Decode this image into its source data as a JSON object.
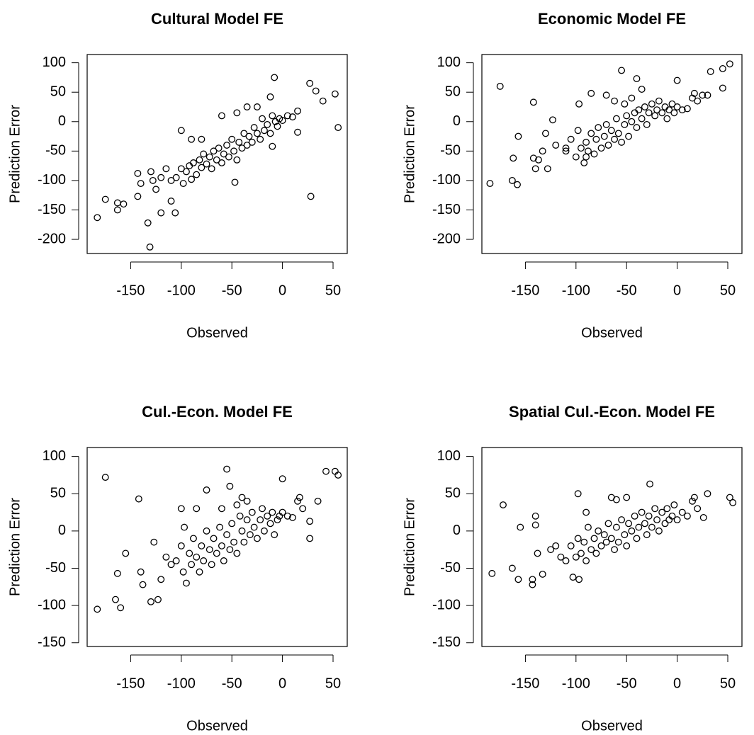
{
  "chart_data": [
    {
      "type": "scatter",
      "title": "Cultural Model FE",
      "xlabel": "Observed",
      "ylabel": "Prediction Error",
      "xlim": [
        -193,
        64
      ],
      "ylim": [
        -224,
        114
      ],
      "xticks": [
        -150,
        -100,
        -50,
        0,
        50
      ],
      "yticks": [
        -200,
        -150,
        -100,
        -50,
        0,
        50,
        100
      ],
      "color": "#000000",
      "x": [
        -183,
        -175,
        -163,
        -163,
        -157,
        -143,
        -143,
        -140,
        -133,
        -131,
        -130,
        -128,
        -125,
        -120,
        -110,
        -106,
        -100,
        -90,
        -8,
        -12,
        28,
        27,
        33,
        40,
        52,
        55,
        15,
        -10,
        -47,
        -105,
        -100,
        -98,
        -95,
        -92,
        -90,
        -88,
        -85,
        -82,
        -80,
        -78,
        -75,
        -72,
        -70,
        -68,
        -65,
        -63,
        -60,
        -58,
        -55,
        -53,
        -50,
        -48,
        -45,
        -43,
        -40,
        -38,
        -35,
        -33,
        -30,
        -28,
        -25,
        -22,
        -20,
        -18,
        -15,
        -12,
        -10,
        -7,
        -5,
        -3,
        0,
        5,
        10,
        15,
        -60,
        -45,
        -35,
        -25,
        -80,
        -115,
        -120,
        -110
      ],
      "y": [
        -163,
        -132,
        -138,
        -150,
        -140,
        -88,
        -127,
        -105,
        -172,
        -213,
        -85,
        -100,
        -115,
        -155,
        -135,
        -155,
        -15,
        -30,
        75,
        42,
        -127,
        65,
        52,
        35,
        47,
        -10,
        -18,
        -42,
        -103,
        -95,
        -80,
        -105,
        -85,
        -75,
        -98,
        -70,
        -90,
        -65,
        -78,
        -55,
        -72,
        -60,
        -80,
        -50,
        -65,
        -45,
        -70,
        -55,
        -40,
        -60,
        -30,
        -50,
        -65,
        -35,
        -45,
        -20,
        -40,
        -25,
        -35,
        -10,
        -20,
        -30,
        5,
        -15,
        -5,
        -20,
        10,
        0,
        -8,
        5,
        2,
        10,
        8,
        18,
        10,
        15,
        25,
        25,
        -30,
        -80,
        -95,
        -100
      ]
    },
    {
      "type": "scatter",
      "title": "Economic Model FE",
      "xlabel": "Observed",
      "ylabel": "Prediction Error",
      "xlim": [
        -193,
        64
      ],
      "ylim": [
        -224,
        114
      ],
      "xticks": [
        -150,
        -100,
        -50,
        0,
        50
      ],
      "yticks": [
        -200,
        -150,
        -100,
        -50,
        0,
        50,
        100
      ],
      "color": "#000000",
      "x": [
        -185,
        -175,
        -163,
        -162,
        -157,
        -158,
        -142,
        -142,
        -140,
        -137,
        -133,
        -130,
        -128,
        -123,
        -110,
        -97,
        -85,
        -55,
        -40,
        -52,
        0,
        33,
        45,
        52,
        45,
        30,
        -110,
        -105,
        -100,
        -98,
        -95,
        -92,
        -90,
        -88,
        -85,
        -82,
        -80,
        -78,
        -75,
        -72,
        -70,
        -68,
        -65,
        -62,
        -60,
        -58,
        -55,
        -52,
        -50,
        -48,
        -45,
        -42,
        -40,
        -38,
        -35,
        -32,
        -30,
        -28,
        -25,
        -22,
        -20,
        -18,
        -15,
        -12,
        -10,
        -8,
        -5,
        -3,
        0,
        5,
        10,
        15,
        17,
        20,
        25,
        -62,
        -45,
        -35,
        -70,
        -90,
        -120
      ],
      "y": [
        -105,
        60,
        -100,
        -62,
        -25,
        -107,
        33,
        -62,
        -80,
        -65,
        -50,
        -20,
        -80,
        3,
        -50,
        30,
        48,
        87,
        73,
        30,
        70,
        85,
        90,
        98,
        57,
        45,
        -45,
        -30,
        -60,
        -15,
        -45,
        -70,
        -35,
        -50,
        -20,
        -55,
        -30,
        -10,
        -45,
        -25,
        -5,
        -40,
        -15,
        -30,
        5,
        -20,
        -35,
        -5,
        10,
        -25,
        0,
        15,
        -10,
        20,
        5,
        25,
        -5,
        15,
        30,
        10,
        20,
        35,
        15,
        25,
        5,
        20,
        30,
        15,
        25,
        20,
        22,
        40,
        48,
        35,
        45,
        35,
        40,
        55,
        45,
        -60,
        -40
      ]
    },
    {
      "type": "scatter",
      "title": "Cul.-Econ. Model FE",
      "xlabel": "Observed",
      "ylabel": "Prediction Error",
      "xlim": [
        -193,
        64
      ],
      "ylim": [
        -155,
        112
      ],
      "xticks": [
        -150,
        -100,
        -50,
        0,
        50
      ],
      "yticks": [
        -150,
        -100,
        -50,
        0,
        50,
        100
      ],
      "color": "#000000",
      "x": [
        -183,
        -175,
        -165,
        -163,
        -160,
        -155,
        -142,
        -140,
        -138,
        -130,
        -127,
        -123,
        -100,
        -97,
        -75,
        -55,
        -52,
        0,
        43,
        52,
        55,
        35,
        27,
        27,
        -110,
        -105,
        -100,
        -98,
        -95,
        -92,
        -90,
        -88,
        -85,
        -82,
        -80,
        -78,
        -75,
        -72,
        -70,
        -68,
        -65,
        -62,
        -60,
        -58,
        -55,
        -52,
        -50,
        -48,
        -45,
        -42,
        -40,
        -38,
        -35,
        -32,
        -30,
        -28,
        -25,
        -22,
        -20,
        -18,
        -15,
        -12,
        -10,
        -8,
        -5,
        -3,
        0,
        5,
        10,
        15,
        17,
        20,
        -40,
        -45,
        -35,
        -60,
        -85,
        -120,
        -115
      ],
      "y": [
        -105,
        72,
        -92,
        -57,
        -103,
        -30,
        43,
        -55,
        -72,
        -95,
        -15,
        -92,
        30,
        5,
        55,
        83,
        60,
        70,
        80,
        80,
        75,
        40,
        13,
        -10,
        -45,
        -40,
        -20,
        -55,
        -70,
        -30,
        -45,
        -10,
        -35,
        -55,
        -20,
        -40,
        0,
        -25,
        -45,
        -10,
        -30,
        5,
        -20,
        -40,
        -5,
        -25,
        10,
        -15,
        -30,
        20,
        0,
        -15,
        15,
        -5,
        25,
        5,
        -10,
        15,
        30,
        0,
        20,
        10,
        25,
        -5,
        15,
        20,
        25,
        20,
        18,
        40,
        45,
        30,
        45,
        35,
        40,
        30,
        30,
        -65,
        -35
      ]
    },
    {
      "type": "scatter",
      "title": "Spatial Cul.-Econ. Model FE",
      "xlabel": "Observed",
      "ylabel": "Prediction Error",
      "xlim": [
        -193,
        64
      ],
      "ylim": [
        -155,
        112
      ],
      "xticks": [
        -150,
        -100,
        -50,
        0,
        50
      ],
      "yticks": [
        -150,
        -100,
        -50,
        0,
        50,
        100
      ],
      "color": "#000000",
      "x": [
        -183,
        -172,
        -163,
        -157,
        -155,
        -143,
        -143,
        -140,
        -140,
        -138,
        -133,
        -98,
        -103,
        -97,
        -27,
        30,
        52,
        55,
        26,
        -110,
        -105,
        -100,
        -98,
        -95,
        -92,
        -90,
        -88,
        -85,
        -82,
        -80,
        -78,
        -75,
        -72,
        -70,
        -68,
        -65,
        -62,
        -60,
        -58,
        -55,
        -52,
        -50,
        -48,
        -45,
        -42,
        -40,
        -38,
        -35,
        -32,
        -30,
        -28,
        -25,
        -22,
        -20,
        -18,
        -15,
        -12,
        -10,
        -8,
        -5,
        -3,
        0,
        5,
        10,
        15,
        17,
        20,
        -60,
        -50,
        -65,
        -90,
        -120,
        -115,
        -125
      ],
      "y": [
        -57,
        35,
        -50,
        -65,
        5,
        -72,
        -65,
        20,
        8,
        -30,
        -58,
        50,
        -62,
        -65,
        63,
        50,
        45,
        38,
        18,
        -40,
        -20,
        -35,
        -10,
        -30,
        -15,
        -40,
        5,
        -25,
        -10,
        -30,
        0,
        -20,
        -5,
        -15,
        10,
        -10,
        -25,
        5,
        -15,
        15,
        -5,
        -20,
        10,
        0,
        20,
        -10,
        5,
        25,
        10,
        -5,
        20,
        5,
        30,
        15,
        0,
        25,
        10,
        30,
        15,
        20,
        35,
        15,
        25,
        20,
        40,
        45,
        30,
        42,
        45,
        45,
        25,
        -20,
        -35,
        -25
      ]
    }
  ]
}
